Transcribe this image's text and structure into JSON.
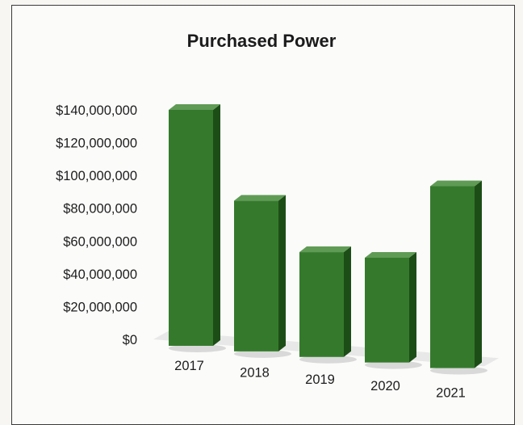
{
  "chart_data": {
    "type": "bar",
    "title": "Purchased Power",
    "categories": [
      "2017",
      "2018",
      "2019",
      "2020",
      "2021"
    ],
    "values": [
      140000000,
      88000000,
      60000000,
      60000000,
      107000000
    ],
    "y_tick_labels": [
      "$0",
      "$20,000,000",
      "$40,000,000",
      "$60,000,000",
      "$80,000,000",
      "$100,000,000",
      "$120,000,000",
      "$140,000,000"
    ],
    "ylim": [
      0,
      140000000
    ],
    "grid": false,
    "legend": "none",
    "bar_style": "3d-column",
    "colors": {
      "front": "#357a2c",
      "side": "#1d4d17",
      "top": "#5f9b55",
      "floor": "#d9d9d9"
    }
  }
}
